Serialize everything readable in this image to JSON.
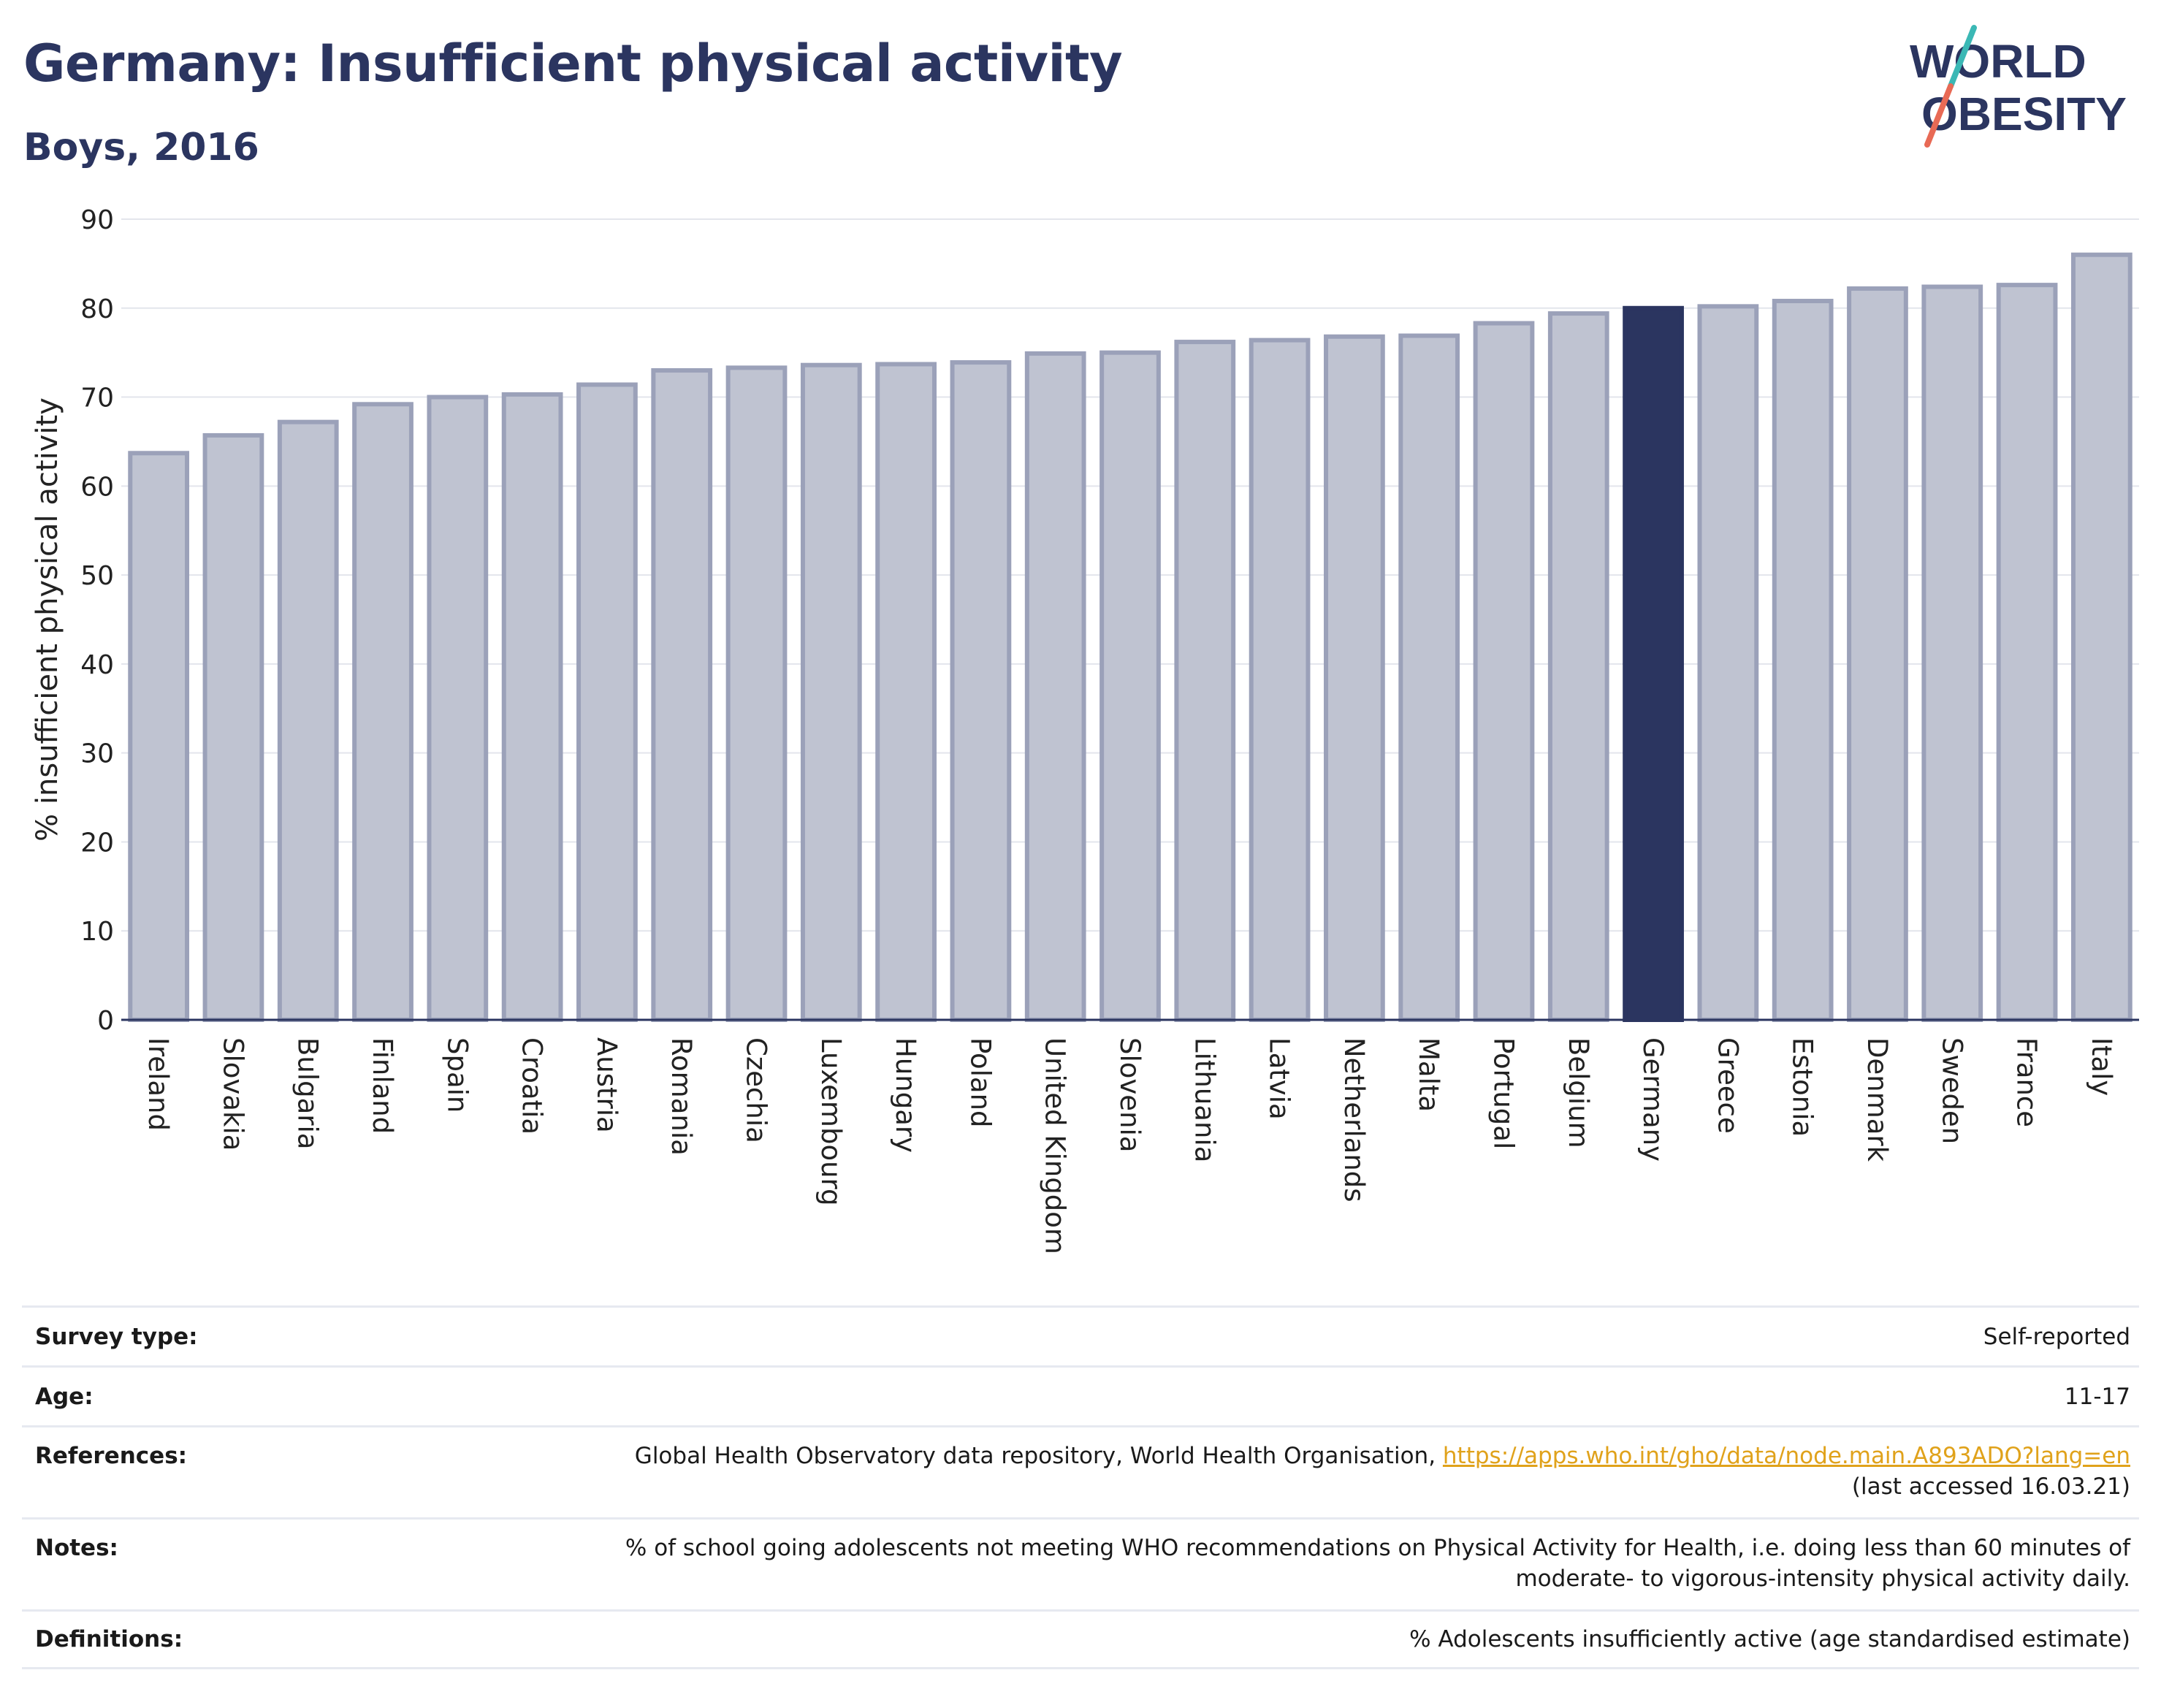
{
  "header": {
    "title": "Germany: Insufficient physical activity",
    "subtitle": "Boys, 2016",
    "logo_line1": "WORLD",
    "logo_line2": "OBESITY"
  },
  "chart_data": {
    "type": "bar",
    "ylabel": "% insufficient physical activity",
    "xlabel": "",
    "ylim": [
      0,
      90
    ],
    "yticks": [
      0,
      10,
      20,
      30,
      40,
      50,
      60,
      70,
      80,
      90
    ],
    "grid": true,
    "highlight": "Germany",
    "colors": {
      "bar": "#bfc3d1",
      "bar_stroke": "#9ba1b9",
      "highlight": "#2b3560",
      "grid": "#e3e5ec",
      "axis": "#2b3560"
    },
    "categories": [
      "Ireland",
      "Slovakia",
      "Bulgaria",
      "Finland",
      "Spain",
      "Croatia",
      "Austria",
      "Romania",
      "Czechia",
      "Luxembourg",
      "Hungary",
      "Poland",
      "United Kingdom",
      "Slovenia",
      "Lithuania",
      "Latvia",
      "Netherlands",
      "Malta",
      "Portugal",
      "Belgium",
      "Germany",
      "Greece",
      "Estonia",
      "Denmark",
      "Sweden",
      "France",
      "Italy"
    ],
    "values": [
      63.7,
      65.7,
      67.2,
      69.2,
      70.0,
      70.3,
      71.4,
      73.0,
      73.3,
      73.6,
      73.7,
      73.9,
      74.9,
      75.0,
      76.2,
      76.4,
      76.8,
      76.9,
      78.3,
      79.4,
      80.0,
      80.2,
      80.8,
      82.2,
      82.4,
      82.6,
      86.0
    ]
  },
  "info": {
    "survey_label": "Survey type:",
    "survey_value": "Self-reported",
    "age_label": "Age:",
    "age_value": "11-17",
    "references_label": "References:",
    "references_text": "Global Health Observatory data repository, World Health Organisation, ",
    "references_link": "https://apps.who.int/gho/data/node.main.A893ADO?lang=en",
    "references_accessed": "(last accessed 16.03.21)",
    "notes_label": "Notes:",
    "notes_line1": "% of school going adolescents not meeting WHO recommendations on Physical Activity for Health, i.e. doing less than 60 minutes of",
    "notes_line2": "moderate- to vigorous-intensity physical activity daily.",
    "definitions_label": "Definitions:",
    "definitions_value": "% Adolescents insufficiently active (age standardised estimate)"
  }
}
